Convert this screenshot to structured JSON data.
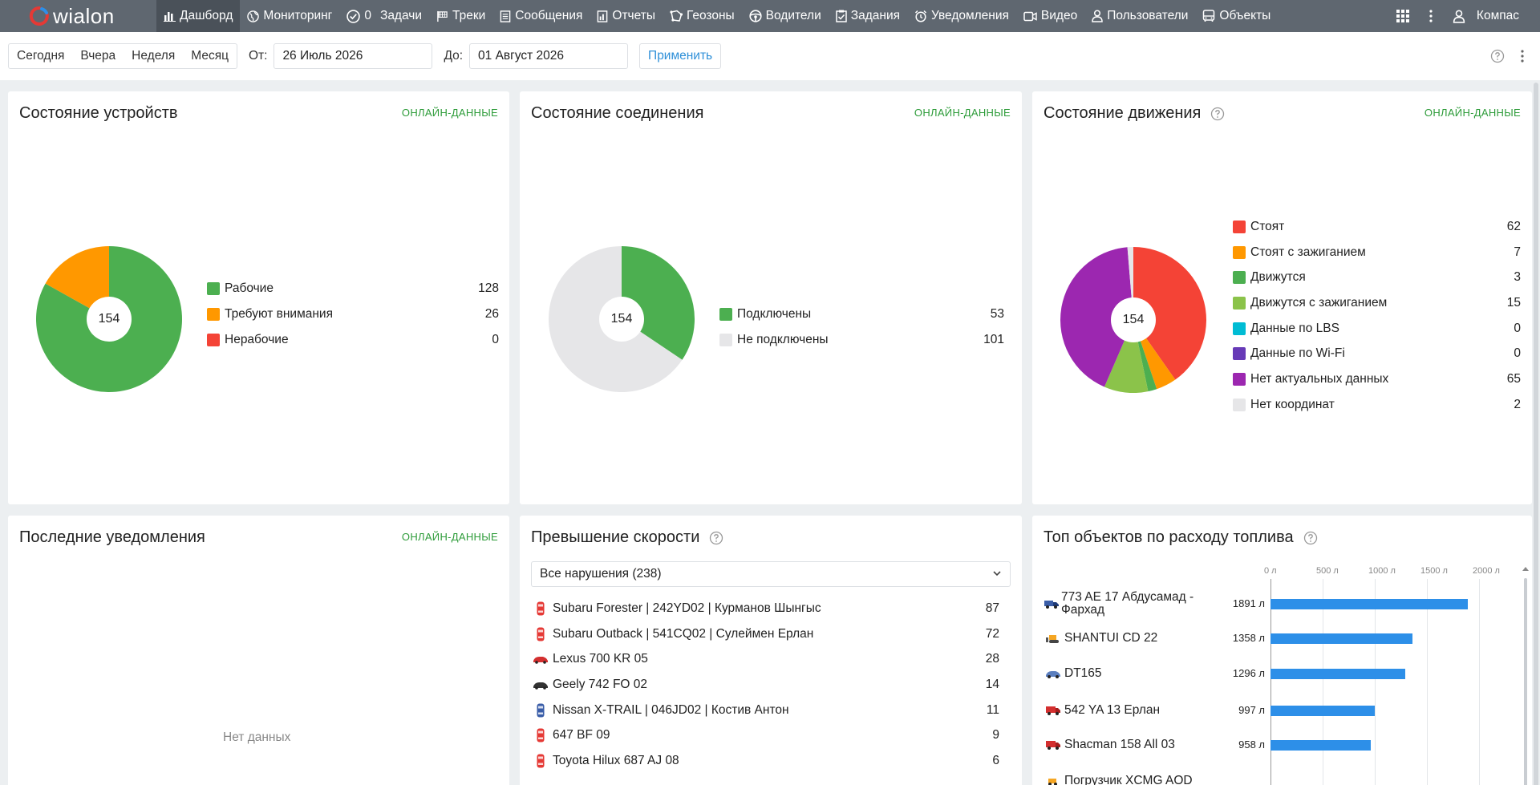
{
  "app": {
    "logo": "wialon"
  },
  "nav": {
    "items": [
      {
        "label": "Дашборд",
        "icon": "bar-chart-icon"
      },
      {
        "label": "Мониторинг",
        "icon": "globe-icon"
      },
      {
        "label": "Задачи",
        "count": "0",
        "icon": "check-circle-icon"
      },
      {
        "label": "Треки",
        "icon": "flag-icon"
      },
      {
        "label": "Сообщения",
        "icon": "list-icon"
      },
      {
        "label": "Отчеты",
        "icon": "report-icon"
      },
      {
        "label": "Геозоны",
        "icon": "geofence-icon"
      },
      {
        "label": "Водители",
        "icon": "steering-wheel-icon"
      },
      {
        "label": "Задания",
        "icon": "clipboard-check-icon"
      },
      {
        "label": "Уведомления",
        "icon": "alarm-icon"
      },
      {
        "label": "Видео",
        "icon": "video-icon"
      },
      {
        "label": "Пользователи",
        "icon": "user-icon"
      },
      {
        "label": "Объекты",
        "icon": "bus-icon"
      }
    ],
    "user": "Компас"
  },
  "filter": {
    "periods": [
      "Сегодня",
      "Вчера",
      "Неделя",
      "Месяц"
    ],
    "from_label": "От:",
    "from_value": "26 Июль 2026",
    "to_label": "До:",
    "to_value": "01 Август 2026",
    "apply": "Применить"
  },
  "cards": {
    "device_state": {
      "title": "Состояние устройств",
      "tag": "ОНЛАЙН-ДАННЫЕ",
      "total": "154",
      "items": [
        {
          "label": "Рабочие",
          "value": "128",
          "color": "#4caf50"
        },
        {
          "label": "Требуют внимания",
          "value": "26",
          "color": "#ff9800"
        },
        {
          "label": "Нерабочие",
          "value": "0",
          "color": "#f44336"
        }
      ]
    },
    "connection_state": {
      "title": "Состояние соединения",
      "tag": "ОНЛАЙН-ДАННЫЕ",
      "total": "154",
      "items": [
        {
          "label": "Подключены",
          "value": "53",
          "color": "#4caf50"
        },
        {
          "label": "Не подключены",
          "value": "101",
          "color": "#e6e6e8"
        }
      ]
    },
    "motion_state": {
      "title": "Состояние движения",
      "tag": "ОНЛАЙН-ДАННЫЕ",
      "total": "154",
      "items": [
        {
          "label": "Стоят",
          "value": "62",
          "color": "#f44336"
        },
        {
          "label": "Стоят с зажиганием",
          "value": "7",
          "color": "#ff9800"
        },
        {
          "label": "Движутся",
          "value": "3",
          "color": "#4caf50"
        },
        {
          "label": "Движутся с зажиганием",
          "value": "15",
          "color": "#8bc34a"
        },
        {
          "label": "Данные по LBS",
          "value": "0",
          "color": "#00bcd4"
        },
        {
          "label": "Данные по Wi-Fi",
          "value": "0",
          "color": "#673ab7"
        },
        {
          "label": "Нет актуальных данных",
          "value": "65",
          "color": "#9c27b0"
        },
        {
          "label": "Нет координат",
          "value": "2",
          "color": "#e6e6e8"
        }
      ]
    },
    "notifications": {
      "title": "Последние уведомления",
      "tag": "ОНЛАЙН-ДАННЫЕ",
      "empty": "Нет данных"
    },
    "speeding": {
      "title": "Превышение скорости",
      "select": "Все нарушения (238)",
      "rows": [
        {
          "name": "Subaru Forester | 242YD02 | Курманов Шынгыс",
          "count": "87",
          "icon": "red-car-icon"
        },
        {
          "name": "Subaru Outback | 541CQ02 | Сулеймен Ерлан",
          "count": "72",
          "icon": "red-car-icon"
        },
        {
          "name": "Lexus 700 KR 05",
          "count": "28",
          "icon": "sport-car-icon"
        },
        {
          "name": "Geely 742 FO 02",
          "count": "14",
          "icon": "black-car-icon"
        },
        {
          "name": "Nissan X-TRAIL | 046JD02 | Костив Антон",
          "count": "11",
          "icon": "blue-car-icon"
        },
        {
          "name": "647 BF 09",
          "count": "9",
          "icon": "red-car-icon"
        },
        {
          "name": "Toyota Hilux 687 AJ 08",
          "count": "6",
          "icon": "red-car-icon"
        }
      ]
    },
    "fuel": {
      "title": "Топ объектов по расходу топлива",
      "axis": [
        "0 л",
        "500 л",
        "1000 л",
        "1500 л",
        "2000 л"
      ],
      "rows": [
        {
          "name": "773 AE 17 Абдусамад - Фархад",
          "label": "1891 л",
          "value": 1891,
          "icon": "truck-icon"
        },
        {
          "name": "SHANTUI CD 22",
          "label": "1358 л",
          "value": 1358,
          "icon": "bulldozer-icon"
        },
        {
          "name": "DT165",
          "label": "1296 л",
          "value": 1296,
          "icon": "car-icon"
        },
        {
          "name": "542 YA 13 Ерлан",
          "label": "997 л",
          "value": 997,
          "icon": "red-truck-icon"
        },
        {
          "name": "Shacman 158 All 03",
          "label": "958 л",
          "value": 958,
          "icon": "red-truck-icon"
        },
        {
          "name": "Погрузчик XCMG AOD",
          "label": "",
          "value": null,
          "icon": "loader-icon"
        }
      ]
    }
  }
}
